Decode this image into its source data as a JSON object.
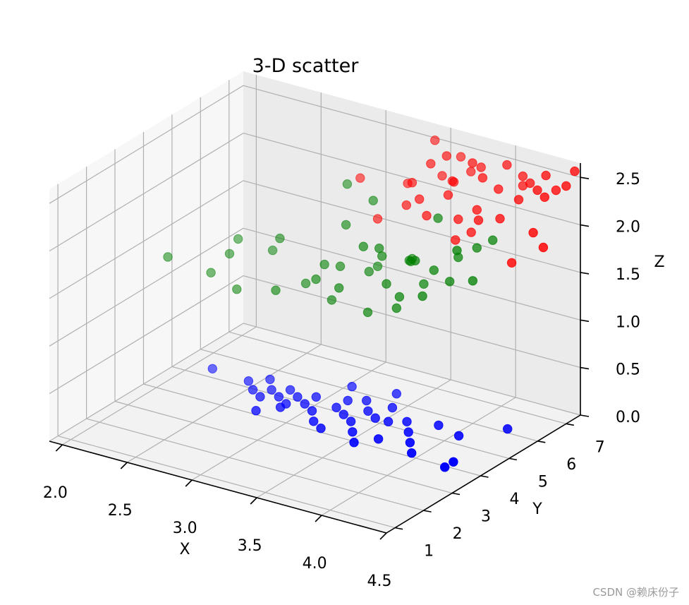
{
  "chart_data": {
    "type": "scatter",
    "projection": "3d",
    "title": "3-D scatter",
    "xlabel": "X",
    "ylabel": "Y",
    "zlabel": "Z",
    "xticks": [
      "2.0",
      "2.5",
      "3.0",
      "3.5",
      "4.0",
      "4.5"
    ],
    "yticks": [
      "1",
      "2",
      "3",
      "4",
      "5",
      "6",
      "7"
    ],
    "zticks": [
      "0.0",
      "0.5",
      "1.0",
      "1.5",
      "2.0",
      "2.5"
    ],
    "xlim": [
      1.9,
      4.5
    ],
    "ylim": [
      0.7,
      7.5
    ],
    "zlim": [
      0.0,
      2.65
    ],
    "grid": true,
    "series": [
      {
        "color": "#0000ff",
        "points": [
          [
            2.3,
            4.6,
            0.2
          ],
          [
            2.6,
            4.5,
            0.2
          ],
          [
            2.7,
            4.2,
            0.2
          ],
          [
            2.7,
            4.8,
            0.2
          ],
          [
            2.8,
            4.4,
            0.2
          ],
          [
            2.8,
            4.0,
            0.2
          ],
          [
            2.9,
            4.6,
            0.2
          ],
          [
            2.9,
            4.2,
            0.2
          ],
          [
            3.0,
            4.4,
            0.2
          ],
          [
            3.0,
            4.0,
            0.2
          ],
          [
            3.0,
            3.8,
            0.2
          ],
          [
            3.1,
            4.6,
            0.2
          ],
          [
            3.1,
            4.2,
            0.2
          ],
          [
            3.2,
            5.4,
            0.2
          ],
          [
            3.2,
            4.0,
            0.2
          ],
          [
            3.3,
            4.8,
            0.2
          ],
          [
            3.3,
            4.4,
            0.2
          ],
          [
            3.3,
            3.6,
            0.2
          ],
          [
            3.4,
            4.2,
            0.2
          ],
          [
            3.4,
            5.0,
            0.2
          ],
          [
            3.4,
            3.4,
            0.2
          ],
          [
            3.5,
            4.6,
            0.2
          ],
          [
            3.5,
            4.0,
            0.2
          ],
          [
            3.5,
            5.6,
            0.2
          ],
          [
            3.6,
            3.6,
            0.2
          ],
          [
            3.6,
            4.4,
            0.2
          ],
          [
            3.7,
            3.2,
            0.2
          ],
          [
            3.8,
            4.6,
            0.2
          ],
          [
            3.8,
            3.6,
            0.2
          ],
          [
            3.9,
            4.2,
            0.2
          ],
          [
            4.0,
            4.8,
            0.2
          ],
          [
            4.0,
            3.8,
            0.2
          ],
          [
            4.1,
            3.4,
            0.2
          ],
          [
            4.2,
            4.6,
            0.2
          ],
          [
            4.4,
            3.5,
            0.2
          ],
          [
            4.4,
            3.2,
            0.2
          ],
          [
            4.4,
            5.4,
            0.2
          ],
          [
            3.6,
            5.0,
            0.2
          ],
          [
            3.7,
            4.4,
            0.2
          ],
          [
            2.9,
            3.4,
            0.2
          ]
        ]
      },
      {
        "color": "#008000",
        "points": [
          [
            2.0,
            4.4,
            1.3
          ],
          [
            2.2,
            5.0,
            1.1
          ],
          [
            2.3,
            5.2,
            1.3
          ],
          [
            2.4,
            5.0,
            1.0
          ],
          [
            2.5,
            5.8,
            1.3
          ],
          [
            2.3,
            5.5,
            1.4
          ],
          [
            2.7,
            5.0,
            1.1
          ],
          [
            2.6,
            5.6,
            1.5
          ],
          [
            2.8,
            5.6,
            1.1
          ],
          [
            2.9,
            5.8,
            1.3
          ],
          [
            2.9,
            5.5,
            1.2
          ],
          [
            3.0,
            5.6,
            1.0
          ],
          [
            3.0,
            5.9,
            1.3
          ],
          [
            3.1,
            5.4,
            1.2
          ],
          [
            3.2,
            6.3,
            1.3
          ],
          [
            3.2,
            5.8,
            1.6
          ],
          [
            3.3,
            6.0,
            1.5
          ],
          [
            3.3,
            5.5,
            1.0
          ],
          [
            3.4,
            6.5,
            1.4
          ],
          [
            3.4,
            5.7,
            1.3
          ],
          [
            3.5,
            6.1,
            1.5
          ],
          [
            3.5,
            5.7,
            1.2
          ],
          [
            3.6,
            6.6,
            1.9
          ],
          [
            3.6,
            5.8,
            1.6
          ],
          [
            3.7,
            6.0,
            1.5
          ],
          [
            3.7,
            5.6,
            1.3
          ],
          [
            3.8,
            6.4,
            1.6
          ],
          [
            3.8,
            6.1,
            1.4
          ],
          [
            3.9,
            6.6,
            1.7
          ],
          [
            3.9,
            5.9,
            1.8
          ],
          [
            4.0,
            6.0,
            1.5
          ],
          [
            4.0,
            6.7,
            1.8
          ],
          [
            3.3,
            5.9,
            1.6
          ],
          [
            3.4,
            6.6,
            1.4
          ],
          [
            3.1,
            6.6,
            1.9
          ],
          [
            3.2,
            6.0,
            1.3
          ],
          [
            2.9,
            6.6,
            2.0
          ],
          [
            3.6,
            6.1,
            1.3
          ],
          [
            3.0,
            6.1,
            1.7
          ],
          [
            3.5,
            5.6,
            1.1
          ]
        ]
      },
      {
        "color": "#ff0000",
        "points": [
          [
            3.0,
            6.6,
            2.1
          ],
          [
            3.3,
            6.9,
            2.1
          ],
          [
            3.2,
            6.3,
            1.8
          ],
          [
            3.4,
            6.6,
            2.2
          ],
          [
            3.4,
            6.4,
            2.0
          ],
          [
            3.5,
            6.8,
            2.4
          ],
          [
            3.5,
            6.4,
            2.1
          ],
          [
            3.6,
            6.2,
            2.0
          ],
          [
            3.6,
            6.9,
            2.5
          ],
          [
            3.7,
            6.7,
            2.3
          ],
          [
            3.7,
            6.5,
            2.2
          ],
          [
            3.8,
            6.9,
            2.5
          ],
          [
            3.8,
            6.4,
            2.0
          ],
          [
            3.8,
            7.2,
            2.4
          ],
          [
            3.9,
            6.6,
            2.1
          ],
          [
            3.9,
            6.8,
            2.4
          ],
          [
            4.0,
            6.9,
            2.3
          ],
          [
            4.0,
            6.2,
            2.1
          ],
          [
            4.1,
            7.3,
            2.3
          ],
          [
            4.1,
            6.5,
            2.1
          ],
          [
            4.2,
            6.7,
            2.3
          ],
          [
            4.3,
            6.9,
            2.4
          ],
          [
            4.3,
            6.0,
            1.8
          ],
          [
            4.4,
            6.3,
            2.1
          ],
          [
            4.4,
            7.1,
            2.4
          ],
          [
            4.5,
            7.0,
            2.5
          ],
          [
            4.5,
            6.2,
            2.0
          ],
          [
            3.6,
            7.4,
            2.4
          ],
          [
            3.5,
            7.2,
            2.2
          ],
          [
            3.9,
            6.4,
            1.9
          ],
          [
            4.2,
            7.1,
            2.4
          ],
          [
            4.0,
            7.2,
            2.5
          ],
          [
            3.7,
            7.3,
            2.3
          ],
          [
            3.6,
            7.1,
            2.2
          ],
          [
            4.3,
            7.2,
            2.5
          ],
          [
            3.8,
            6.3,
            1.8
          ],
          [
            4.5,
            7.3,
            2.6
          ],
          [
            4.1,
            7.3,
            2.4
          ],
          [
            3.4,
            7.4,
            2.5
          ],
          [
            4.4,
            6.7,
            2.4
          ]
        ]
      }
    ]
  },
  "watermark": "CSDN @赖床份子"
}
